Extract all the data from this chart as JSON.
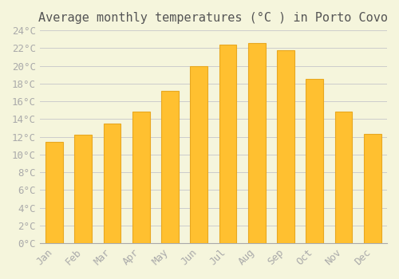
{
  "title": "Average monthly temperatures (°C ) in Porto Covo",
  "months": [
    "Jan",
    "Feb",
    "Mar",
    "Apr",
    "May",
    "Jun",
    "Jul",
    "Aug",
    "Sep",
    "Oct",
    "Nov",
    "Dec"
  ],
  "temperatures": [
    11.4,
    12.2,
    13.5,
    14.8,
    17.2,
    20.0,
    22.4,
    22.6,
    21.8,
    18.5,
    14.8,
    12.3
  ],
  "bar_color_face": "#FFC030",
  "bar_color_edge": "#E8A820",
  "background_color": "#F5F5DC",
  "grid_color": "#CCCCCC",
  "ylim": [
    0,
    24
  ],
  "ytick_step": 2,
  "title_fontsize": 11,
  "tick_fontsize": 9,
  "tick_label_color": "#AAAAAA",
  "font_family": "monospace"
}
